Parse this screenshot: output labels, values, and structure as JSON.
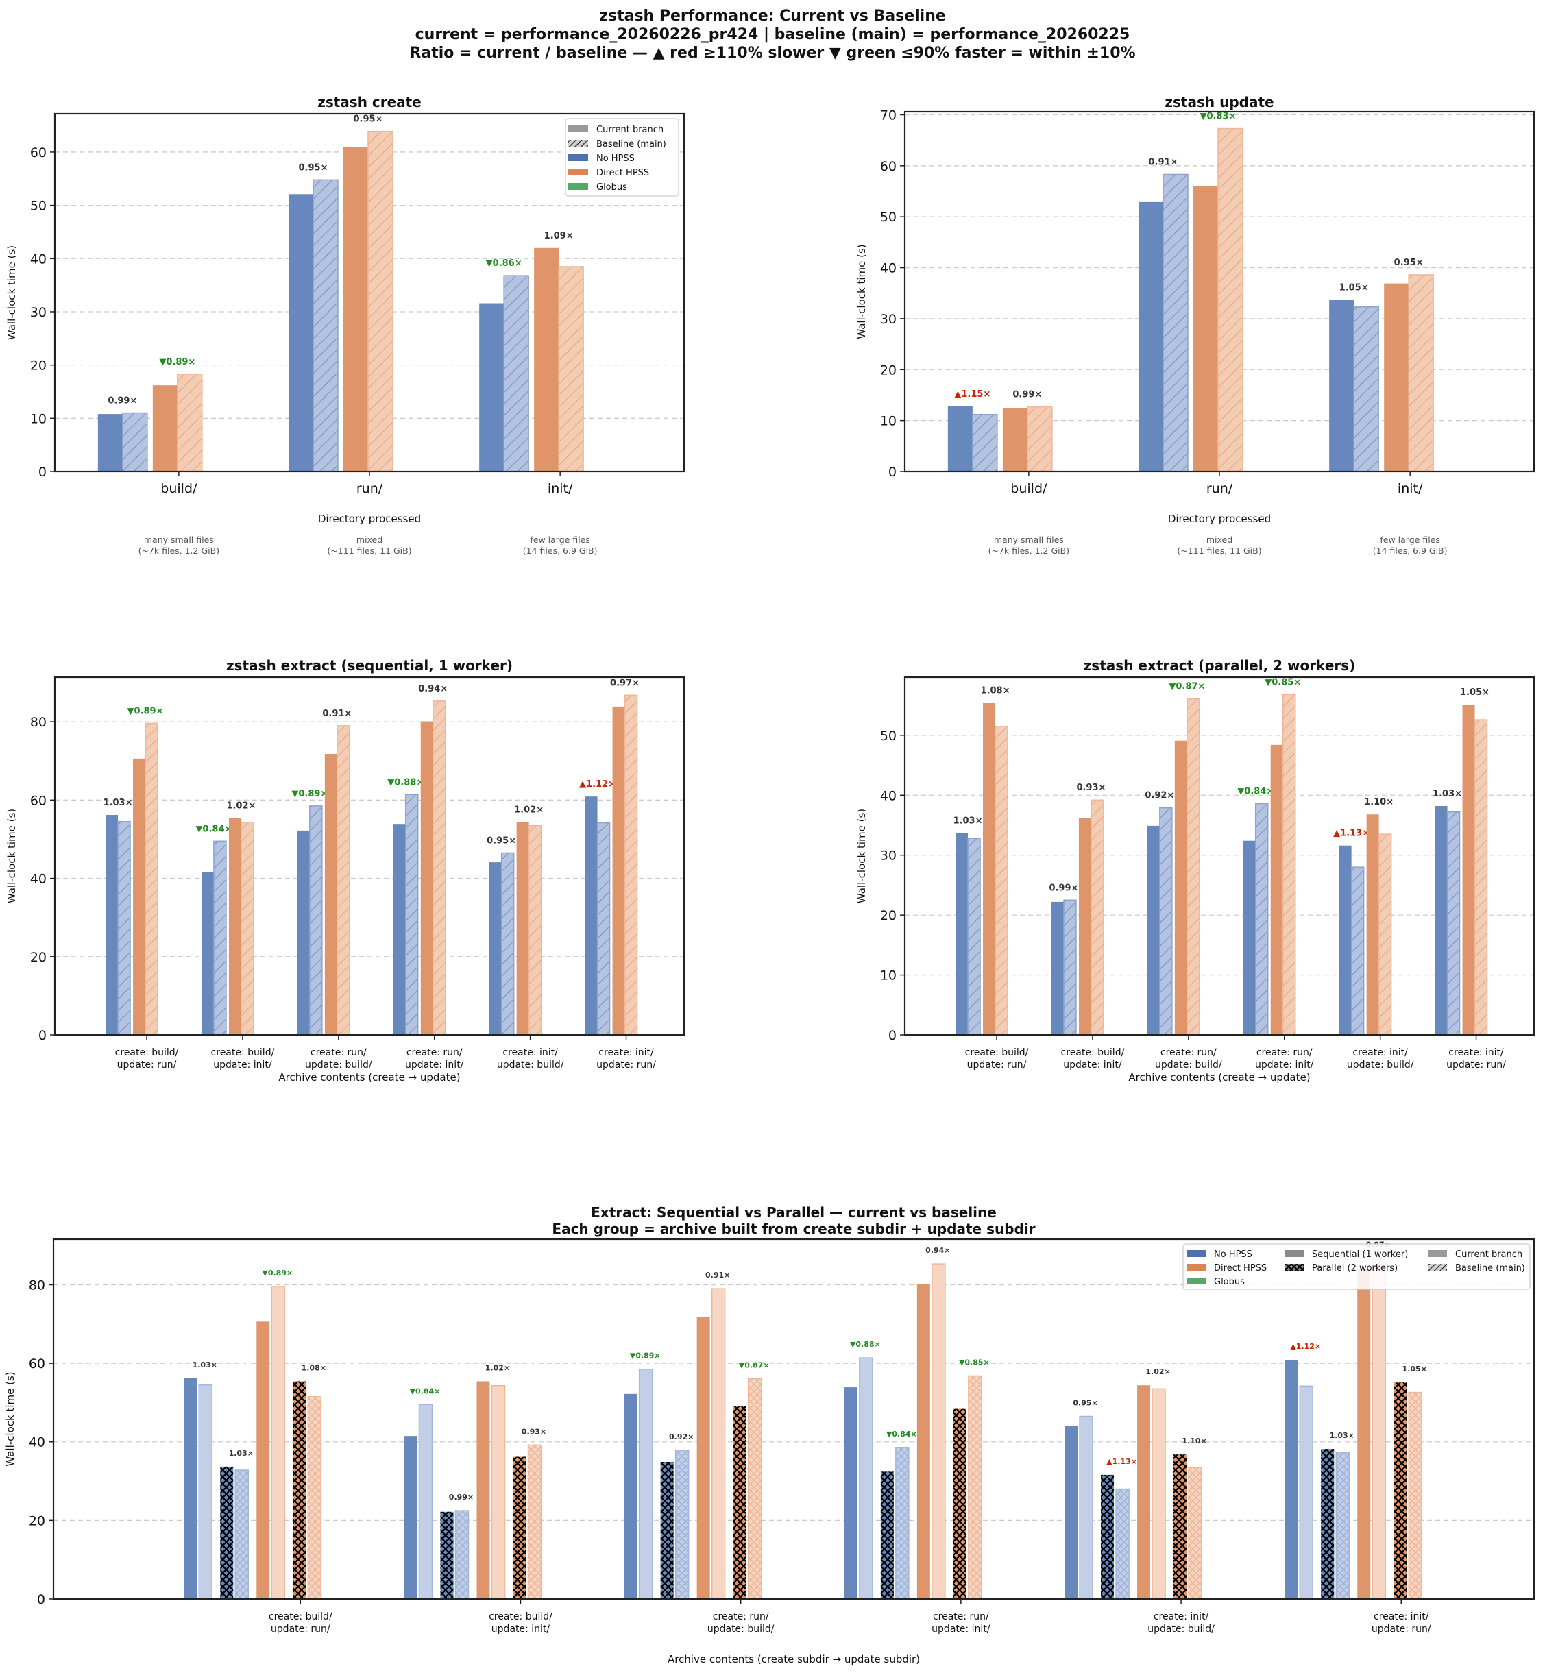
{
  "suptitle": {
    "line1": "zstash Performance: Current vs Baseline",
    "line2": "current = performance_20260226_pr424   |   baseline (main) = performance_20260225",
    "line3": "Ratio = current / baseline  —  ▲ red ≥110% slower  ▼ green ≤90% faster  = within ±10%"
  },
  "colors": {
    "no_hpss": "#4c72b0",
    "direct_hpss": "#dd8452",
    "globus": "#55a868",
    "slower": "#cc2200",
    "faster": "#228b22",
    "neutral": "#333333"
  },
  "chart_data": [
    {
      "id": "create",
      "type": "bar",
      "title": "zstash create",
      "xlabel": "Directory processed",
      "ylabel": "Wall-clock time (s)",
      "ylim": [
        0,
        67.2
      ],
      "yticks": [
        0,
        10,
        20,
        30,
        40,
        50,
        60
      ],
      "grid": true,
      "categories": [
        "build/",
        "run/",
        "init/"
      ],
      "category_notes": [
        [
          "many small files",
          "(~7k files, 1.2 GiB)"
        ],
        [
          "mixed",
          "(~111 files, 11 GiB)"
        ],
        [
          "few large files",
          "(14 files, 6.9 GiB)"
        ]
      ],
      "legend": {
        "placement": "top-right",
        "entries": [
          {
            "label": "Current branch",
            "kind": "solid-gray"
          },
          {
            "label": "Baseline (main)",
            "kind": "hatch-gray"
          },
          {
            "label": "No HPSS",
            "kind": "color",
            "color": "#4c72b0"
          },
          {
            "label": "Direct HPSS",
            "kind": "color",
            "color": "#dd8452"
          },
          {
            "label": "Globus",
            "kind": "color",
            "color": "#55a868"
          }
        ]
      },
      "series": [
        {
          "name": "No HPSS",
          "current": [
            10.8,
            52.1,
            31.6
          ],
          "baseline": [
            11.0,
            54.8,
            36.8
          ],
          "ratios": [
            "0.99×",
            "0.95×",
            "▼0.86×"
          ],
          "ratio_status": [
            "neutral",
            "neutral",
            "faster"
          ]
        },
        {
          "name": "Direct HPSS",
          "current": [
            16.2,
            60.9,
            42.0
          ],
          "baseline": [
            18.3,
            63.9,
            38.5
          ],
          "ratios": [
            "▼0.89×",
            "0.95×",
            "1.09×"
          ],
          "ratio_status": [
            "faster",
            "neutral",
            "neutral"
          ]
        }
      ]
    },
    {
      "id": "update",
      "type": "bar",
      "title": "zstash update",
      "xlabel": "Directory processed",
      "ylabel": "Wall-clock time (s)",
      "ylim": [
        0,
        70.6
      ],
      "yticks": [
        0,
        10,
        20,
        30,
        40,
        50,
        60,
        70
      ],
      "grid": true,
      "categories": [
        "build/",
        "run/",
        "init/"
      ],
      "category_notes": [
        [
          "many small files",
          "(~7k files, 1.2 GiB)"
        ],
        [
          "mixed",
          "(~111 files, 11 GiB)"
        ],
        [
          "few large files",
          "(14 files, 6.9 GiB)"
        ]
      ],
      "series": [
        {
          "name": "No HPSS",
          "current": [
            12.8,
            53.0,
            33.7
          ],
          "baseline": [
            11.2,
            58.3,
            32.3
          ],
          "ratios": [
            "▲1.15×",
            "0.91×",
            "1.05×"
          ],
          "ratio_status": [
            "slower",
            "neutral",
            "neutral"
          ]
        },
        {
          "name": "Direct HPSS",
          "current": [
            12.5,
            56.0,
            36.9
          ],
          "baseline": [
            12.7,
            67.3,
            38.6
          ],
          "ratios": [
            "0.99×",
            "▼0.83×",
            "0.95×"
          ],
          "ratio_status": [
            "neutral",
            "faster",
            "neutral"
          ]
        }
      ]
    },
    {
      "id": "extract_seq",
      "type": "bar",
      "title": "zstash extract  (sequential, 1 worker)",
      "xlabel": "Archive contents (create → update)",
      "ylabel": "Wall-clock time (s)",
      "ylim": [
        0,
        91.4
      ],
      "yticks": [
        0,
        20,
        40,
        60,
        80
      ],
      "grid": true,
      "categories": [
        [
          "create: build/",
          "update: run/"
        ],
        [
          "create: build/",
          "update: init/"
        ],
        [
          "create: run/",
          "update: build/"
        ],
        [
          "create: run/",
          "update: init/"
        ],
        [
          "create: init/",
          "update: build/"
        ],
        [
          "create: init/",
          "update: run/"
        ]
      ],
      "series": [
        {
          "name": "No HPSS",
          "current": [
            56.2,
            41.5,
            52.2,
            53.9,
            44.1,
            60.9
          ],
          "baseline": [
            54.5,
            49.5,
            58.5,
            61.4,
            46.5,
            54.2
          ],
          "ratios": [
            "1.03×",
            "▼0.84×",
            "▼0.89×",
            "▼0.88×",
            "0.95×",
            "▲1.12×"
          ],
          "ratio_status": [
            "neutral",
            "faster",
            "faster",
            "faster",
            "neutral",
            "slower"
          ]
        },
        {
          "name": "Direct HPSS",
          "current": [
            70.6,
            55.4,
            71.8,
            80.1,
            54.4,
            83.9
          ],
          "baseline": [
            79.6,
            54.3,
            79.0,
            85.3,
            53.5,
            86.8
          ],
          "ratios": [
            "▼0.89×",
            "1.02×",
            "0.91×",
            "0.94×",
            "1.02×",
            "0.97×"
          ],
          "ratio_status": [
            "faster",
            "neutral",
            "neutral",
            "neutral",
            "neutral",
            "neutral"
          ]
        }
      ]
    },
    {
      "id": "extract_par",
      "type": "bar",
      "title": "zstash extract  (parallel, 2 workers)",
      "xlabel": "Archive contents (create → update)",
      "ylabel": "Wall-clock time (s)",
      "ylim": [
        0,
        59.7
      ],
      "yticks": [
        0,
        10,
        20,
        30,
        40,
        50
      ],
      "grid": true,
      "categories": [
        [
          "create: build/",
          "update: run/"
        ],
        [
          "create: build/",
          "update: init/"
        ],
        [
          "create: run/",
          "update: build/"
        ],
        [
          "create: run/",
          "update: init/"
        ],
        [
          "create: init/",
          "update: build/"
        ],
        [
          "create: init/",
          "update: run/"
        ]
      ],
      "series": [
        {
          "name": "No HPSS",
          "current": [
            33.7,
            22.2,
            34.9,
            32.4,
            31.6,
            38.2
          ],
          "baseline": [
            32.8,
            22.5,
            37.9,
            38.6,
            28.0,
            37.2
          ],
          "ratios": [
            "1.03×",
            "0.99×",
            "0.92×",
            "▼0.84×",
            "▲1.13×",
            "1.03×"
          ],
          "ratio_status": [
            "neutral",
            "neutral",
            "neutral",
            "faster",
            "slower",
            "neutral"
          ]
        },
        {
          "name": "Direct HPSS",
          "current": [
            55.4,
            36.2,
            49.1,
            48.4,
            36.8,
            55.1
          ],
          "baseline": [
            51.5,
            39.2,
            56.1,
            56.8,
            33.5,
            52.6
          ],
          "ratios": [
            "1.08×",
            "0.93×",
            "▼0.87×",
            "▼0.85×",
            "1.10×",
            "1.05×"
          ],
          "ratio_status": [
            "neutral",
            "neutral",
            "faster",
            "faster",
            "neutral",
            "neutral"
          ]
        }
      ]
    },
    {
      "id": "seq_vs_par",
      "type": "bar",
      "title": "Extract: Sequential vs Parallel — current vs baseline",
      "subtitle": "Each group = archive built from create subdir + update subdir",
      "xlabel": "Archive contents (create subdir → update subdir)",
      "ylabel": "Wall-clock time (s)",
      "ylim": [
        0,
        91.6
      ],
      "yticks": [
        0,
        20,
        40,
        60,
        80
      ],
      "grid": true,
      "categories": [
        [
          "create: build/",
          "update: run/"
        ],
        [
          "create: build/",
          "update: init/"
        ],
        [
          "create: run/",
          "update: build/"
        ],
        [
          "create: run/",
          "update: init/"
        ],
        [
          "create: init/",
          "update: build/"
        ],
        [
          "create: init/",
          "update: run/"
        ]
      ],
      "legend": {
        "placement": "top-right",
        "entries": [
          {
            "label": "No HPSS",
            "kind": "color",
            "color": "#4c72b0"
          },
          {
            "label": "Direct HPSS",
            "kind": "color",
            "color": "#dd8452"
          },
          {
            "label": "Globus",
            "kind": "color",
            "color": "#55a868"
          },
          {
            "label": "Sequential (1 worker)",
            "kind": "solid-dark"
          },
          {
            "label": "Parallel (2 workers)",
            "kind": "cross-dark"
          },
          {
            "label": "Current branch",
            "kind": "solid-gray"
          },
          {
            "label": "Baseline (main)",
            "kind": "hatch-gray"
          }
        ]
      },
      "series": [
        {
          "name": "No HPSS · Sequential",
          "method": "No HPSS",
          "mode": "seq",
          "current": [
            56.2,
            41.5,
            52.2,
            53.9,
            44.1,
            60.9
          ],
          "baseline": [
            54.5,
            49.5,
            58.5,
            61.4,
            46.5,
            54.2
          ],
          "ratios": [
            "1.03×",
            "▼0.84×",
            "▼0.89×",
            "▼0.88×",
            "0.95×",
            "▲1.12×"
          ],
          "ratio_status": [
            "neutral",
            "faster",
            "faster",
            "faster",
            "neutral",
            "slower"
          ]
        },
        {
          "name": "No HPSS · Parallel",
          "method": "No HPSS",
          "mode": "par",
          "current": [
            33.7,
            22.2,
            34.9,
            32.4,
            31.6,
            38.2
          ],
          "baseline": [
            32.8,
            22.5,
            37.9,
            38.6,
            28.0,
            37.2
          ],
          "ratios": [
            "1.03×",
            "0.99×",
            "0.92×",
            "▼0.84×",
            "▲1.13×",
            "1.03×"
          ],
          "ratio_status": [
            "neutral",
            "neutral",
            "neutral",
            "faster",
            "slower",
            "neutral"
          ]
        },
        {
          "name": "Direct HPSS · Sequential",
          "method": "Direct HPSS",
          "mode": "seq",
          "current": [
            70.6,
            55.4,
            71.8,
            80.1,
            54.4,
            83.9
          ],
          "baseline": [
            79.6,
            54.3,
            79.0,
            85.3,
            53.5,
            86.8
          ],
          "ratios": [
            "▼0.89×",
            "1.02×",
            "0.91×",
            "0.94×",
            "1.02×",
            "0.97×"
          ],
          "ratio_status": [
            "faster",
            "neutral",
            "neutral",
            "neutral",
            "neutral",
            "neutral"
          ]
        },
        {
          "name": "Direct HPSS · Parallel",
          "method": "Direct HPSS",
          "mode": "par",
          "current": [
            55.4,
            36.2,
            49.1,
            48.4,
            36.8,
            55.1
          ],
          "baseline": [
            51.5,
            39.2,
            56.1,
            56.8,
            33.5,
            52.6
          ],
          "ratios": [
            "1.08×",
            "0.93×",
            "▼0.87×",
            "▼0.85×",
            "1.10×",
            "1.05×"
          ],
          "ratio_status": [
            "neutral",
            "neutral",
            "faster",
            "faster",
            "neutral",
            "neutral"
          ]
        }
      ]
    }
  ]
}
